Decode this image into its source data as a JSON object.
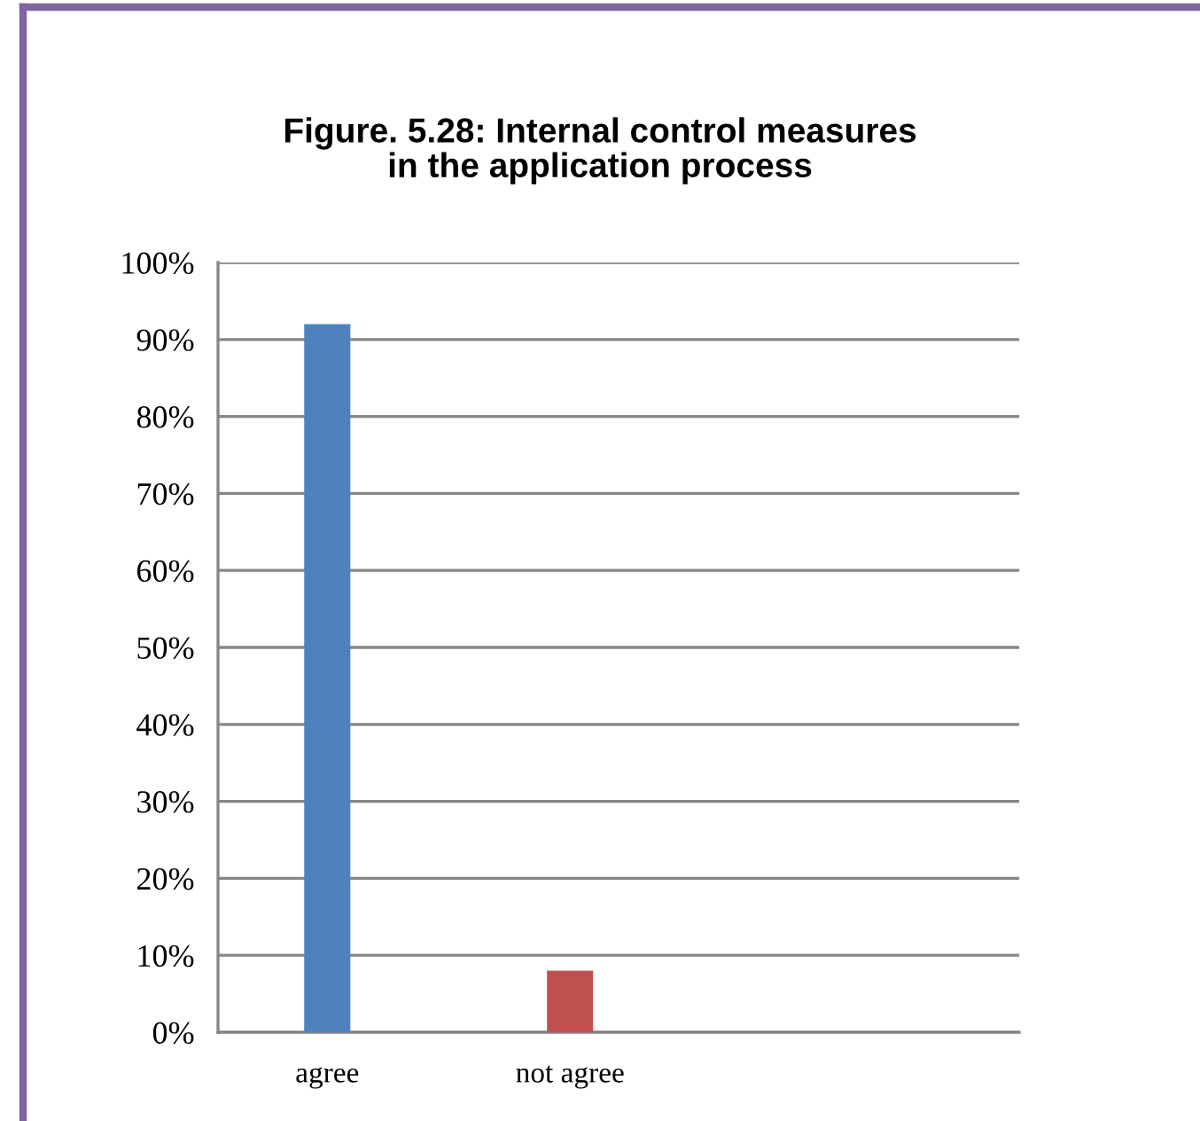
{
  "chart_data": {
    "type": "bar",
    "title": "Figure. 5.28: Internal control measures\nin the application process",
    "categories": [
      "agree",
      "not agree"
    ],
    "values": [
      92,
      8
    ],
    "colors": [
      "#4f81bd",
      "#c0504d"
    ],
    "ylim": [
      0,
      100
    ],
    "yticks": [
      {
        "value": 0,
        "label": "0%"
      },
      {
        "value": 10,
        "label": "10%"
      },
      {
        "value": 20,
        "label": "20%"
      },
      {
        "value": 30,
        "label": "30%"
      },
      {
        "value": 40,
        "label": "40%"
      },
      {
        "value": 50,
        "label": "50%"
      },
      {
        "value": 60,
        "label": "60%"
      },
      {
        "value": 70,
        "label": "70%"
      },
      {
        "value": 80,
        "label": "80%"
      },
      {
        "value": 90,
        "label": "90%"
      },
      {
        "value": 100,
        "label": "100%"
      }
    ],
    "grid": "y",
    "legend": false
  }
}
